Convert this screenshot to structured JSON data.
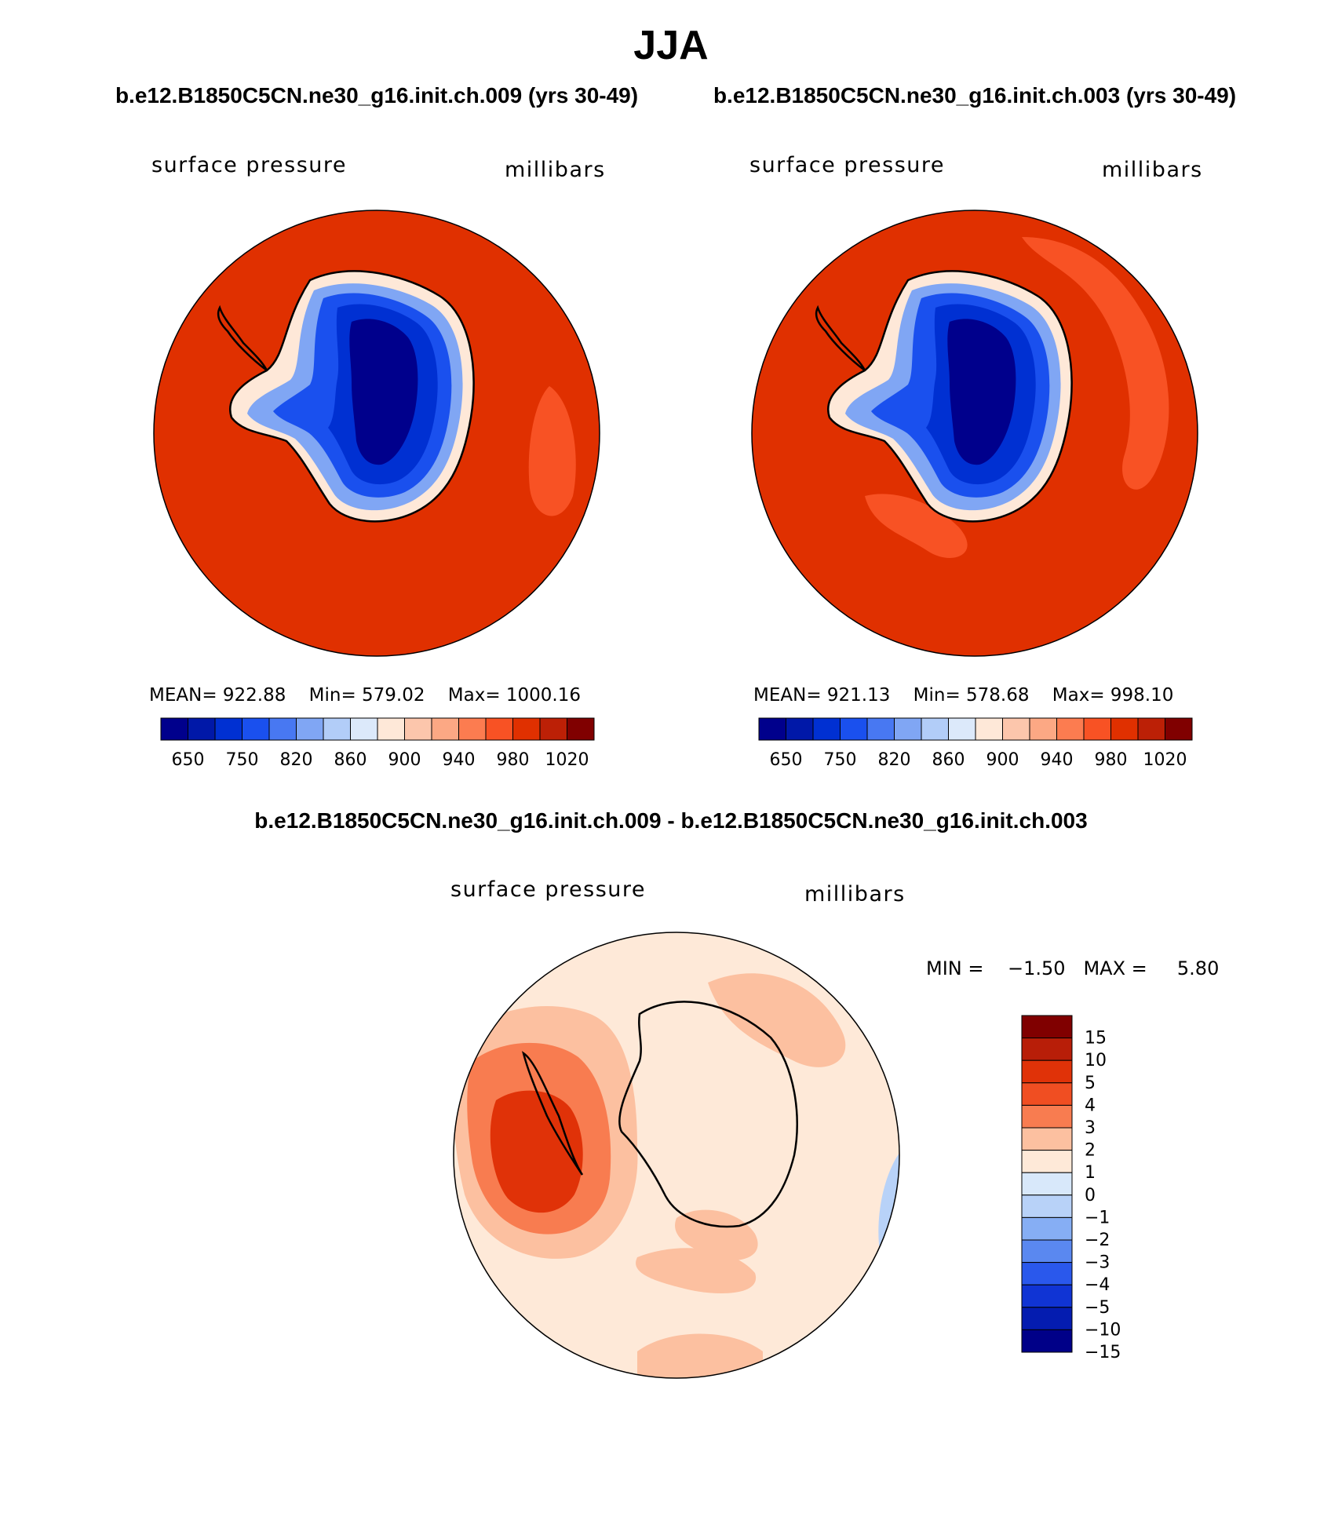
{
  "title": "JJA",
  "panels": [
    {
      "case_title": "b.e12.B1850C5CN.ne30_g16.init.ch.009 (yrs 30-49)",
      "left_label": "surface pressure",
      "right_label": "millibars",
      "mean": "MEAN= 922.88",
      "min": "Min= 579.02",
      "max": "Max= 1000.16"
    },
    {
      "case_title": "b.e12.B1850C5CN.ne30_g16.init.ch.003 (yrs 30-49)",
      "left_label": "surface pressure",
      "right_label": "millibars",
      "mean": "MEAN= 921.13",
      "min": "Min= 578.68",
      "max": "Max= 998.10"
    }
  ],
  "colorbar": {
    "colors": [
      "#00008c",
      "#0018a8",
      "#0030d2",
      "#1a50ee",
      "#4878f2",
      "#80a6f4",
      "#b2cdf8",
      "#dce9fa",
      "#fee8d8",
      "#fcc6ac",
      "#fca884",
      "#fc7c50",
      "#f85224",
      "#e03000",
      "#bc2006",
      "#800000"
    ],
    "labels": [
      "650",
      "750",
      "820",
      "860",
      "900",
      "940",
      "980",
      "1020"
    ]
  },
  "difference": {
    "title": "b.e12.B1850C5CN.ne30_g16.init.ch.009 - b.e12.B1850C5CN.ne30_g16.init.ch.003",
    "left_label": "surface pressure",
    "right_label": "millibars",
    "min_label": "MIN =",
    "min_value": "−1.50",
    "max_label": "MAX =",
    "max_value": "5.80",
    "colorbar_colors": [
      "#800000",
      "#b81e08",
      "#e03208",
      "#f04e22",
      "#f87c50",
      "#fcc0a0",
      "#fee9d8",
      "#d8e8fa",
      "#b8d2f8",
      "#86aef4",
      "#5a88f0",
      "#2a58ec",
      "#1034d4",
      "#041cb0",
      "#000088"
    ],
    "colorbar_labels": [
      "15",
      "10",
      "5",
      "4",
      "3",
      "2",
      "1",
      "0",
      "−1",
      "−2",
      "−3",
      "−4",
      "−5",
      "−10",
      "−15"
    ]
  }
}
